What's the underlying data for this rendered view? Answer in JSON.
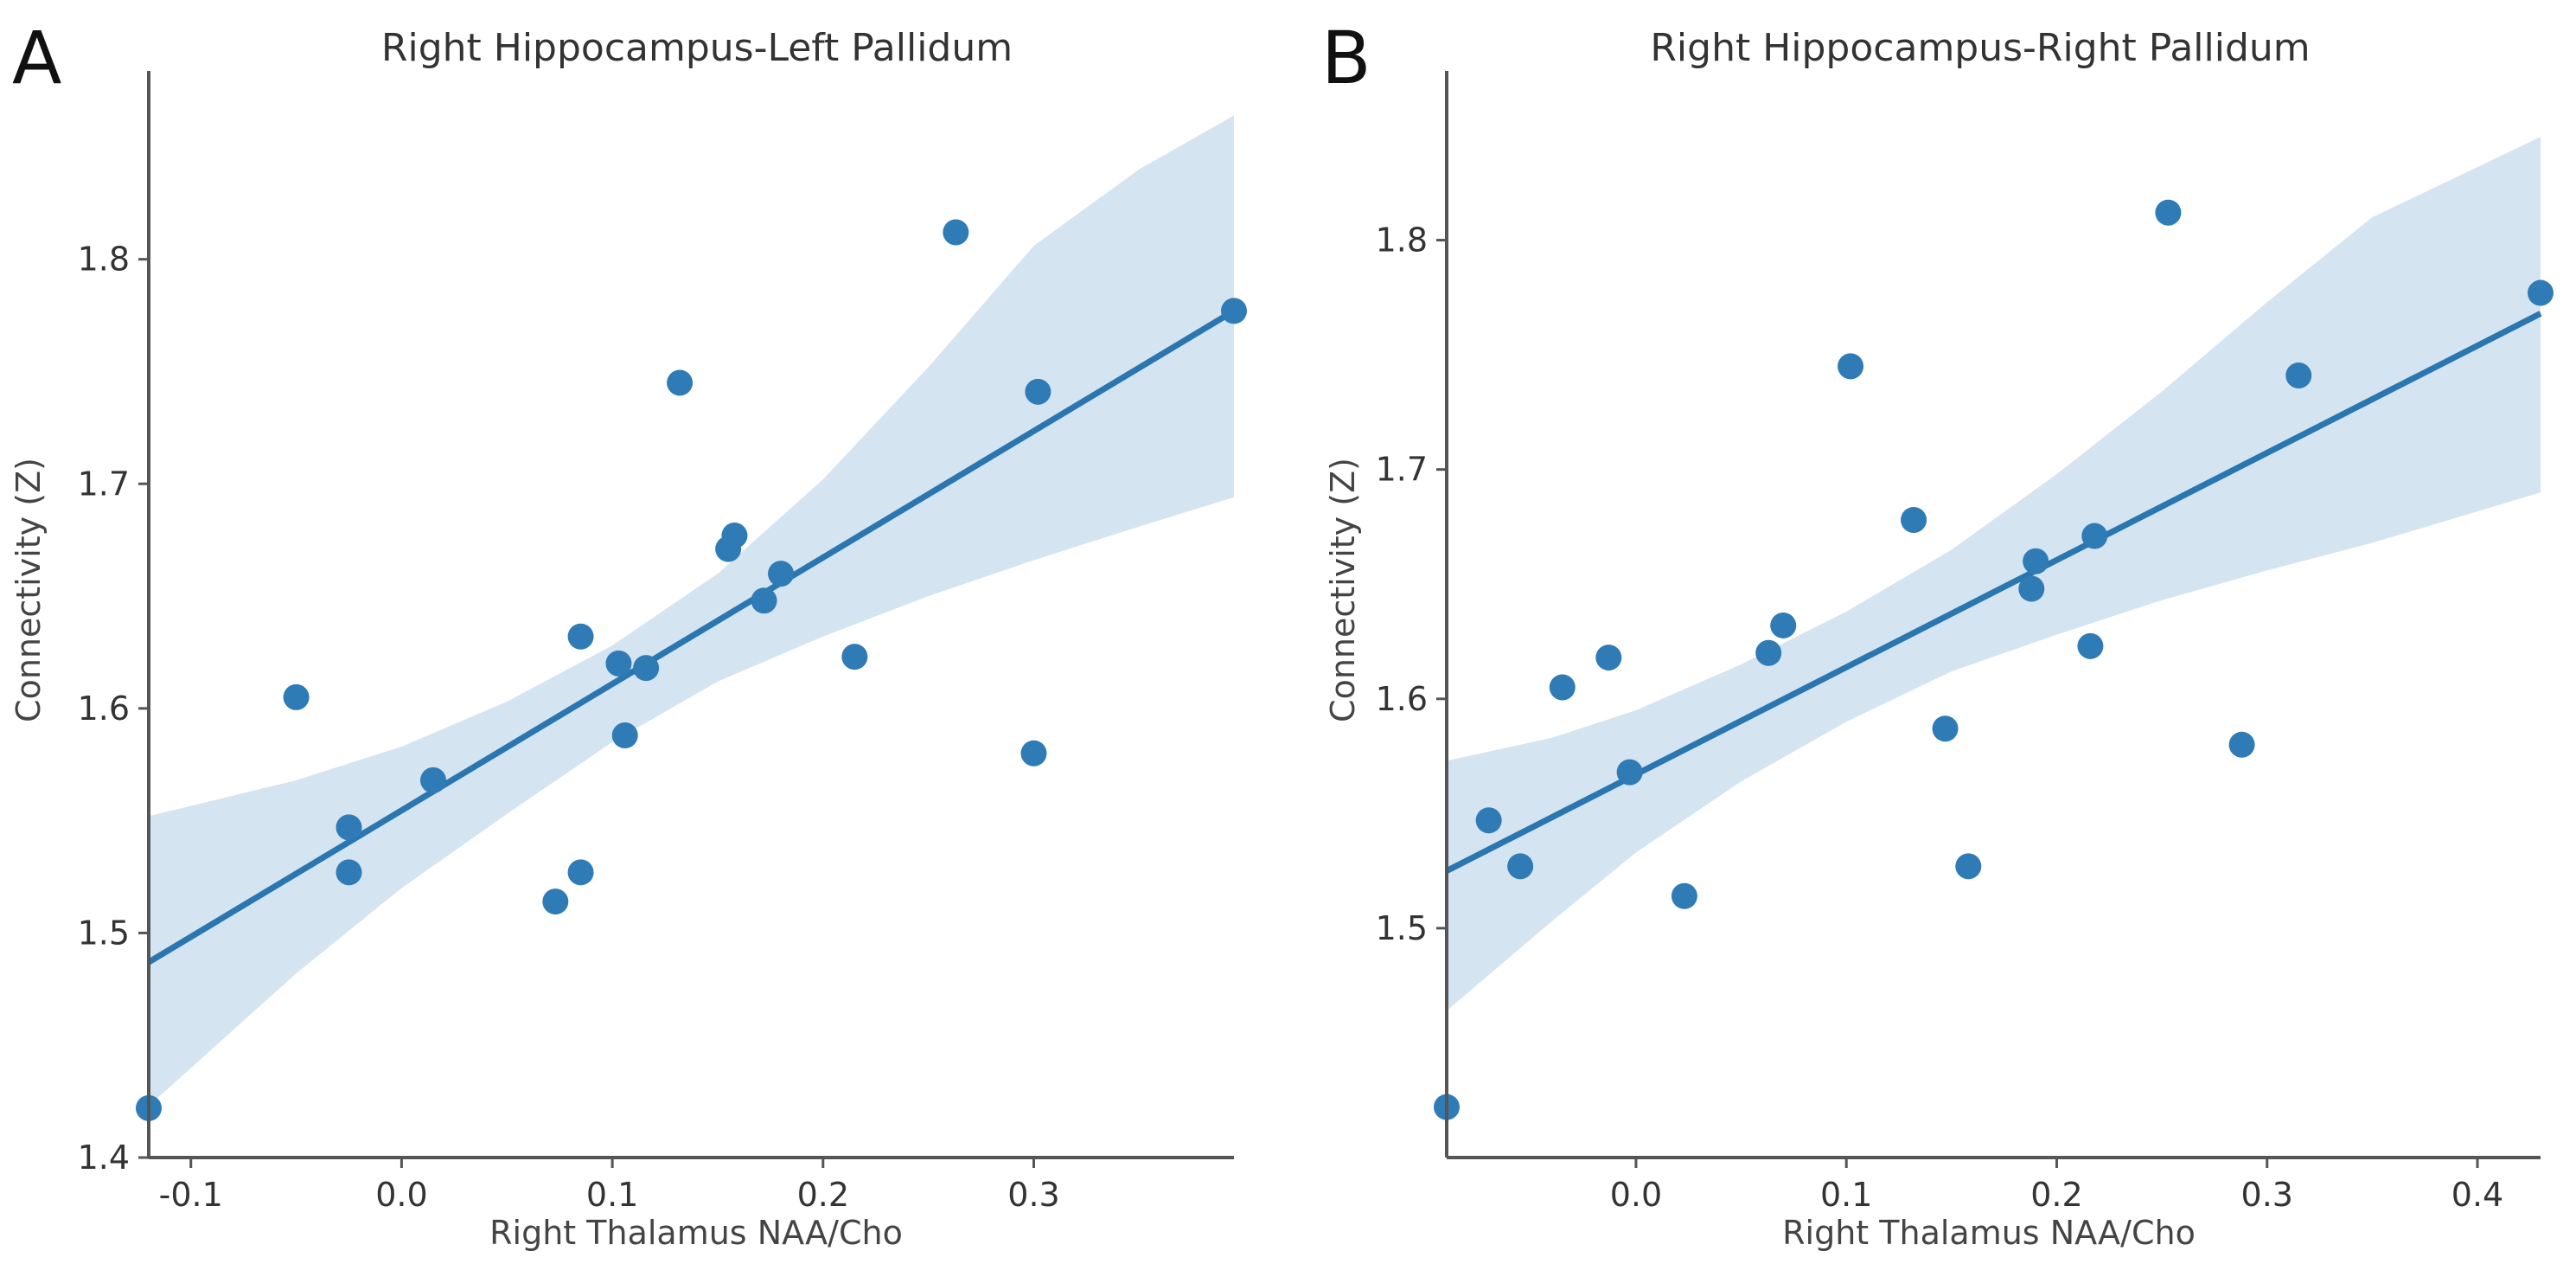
{
  "chart_data": [
    {
      "type": "scatter",
      "panel_label": "A",
      "title": "Right Hippocampus-Left Pallidum",
      "xlabel": "Right Thalamus NAA/Cho",
      "ylabel": "Connectivity (Z)",
      "xlim": [
        -0.12,
        0.395
      ],
      "ylim": [
        1.4,
        1.88
      ],
      "xticks": [
        -0.1,
        0.0,
        0.1,
        0.2,
        0.3
      ],
      "xtick_labels": [
        "-0.1",
        "0.0",
        "0.1",
        "0.2",
        "0.3"
      ],
      "yticks": [
        1.4,
        1.5,
        1.6,
        1.7,
        1.8
      ],
      "ytick_labels": [
        "1.4",
        "1.5",
        "1.6",
        "1.7",
        "1.8"
      ],
      "points": [
        {
          "x": -0.12,
          "y": 1.422
        },
        {
          "x": -0.05,
          "y": 1.605
        },
        {
          "x": -0.025,
          "y": 1.547
        },
        {
          "x": -0.025,
          "y": 1.527
        },
        {
          "x": 0.015,
          "y": 1.568
        },
        {
          "x": 0.073,
          "y": 1.514
        },
        {
          "x": 0.085,
          "y": 1.632
        },
        {
          "x": 0.085,
          "y": 1.527
        },
        {
          "x": 0.103,
          "y": 1.62
        },
        {
          "x": 0.106,
          "y": 1.588
        },
        {
          "x": 0.116,
          "y": 1.618
        },
        {
          "x": 0.132,
          "y": 1.745
        },
        {
          "x": 0.155,
          "y": 1.671
        },
        {
          "x": 0.158,
          "y": 1.677
        },
        {
          "x": 0.172,
          "y": 1.648
        },
        {
          "x": 0.18,
          "y": 1.66
        },
        {
          "x": 0.215,
          "y": 1.623
        },
        {
          "x": 0.263,
          "y": 1.812
        },
        {
          "x": 0.3,
          "y": 1.58
        },
        {
          "x": 0.302,
          "y": 1.741
        },
        {
          "x": 0.395,
          "y": 1.777
        }
      ],
      "regression": {
        "x": [
          -0.12,
          0.395
        ],
        "y": [
          1.487,
          1.777
        ]
      },
      "ci_band": [
        {
          "x": -0.12,
          "lo": 1.423,
          "hi": 1.552
        },
        {
          "x": -0.05,
          "lo": 1.482,
          "hi": 1.568
        },
        {
          "x": 0.0,
          "lo": 1.52,
          "hi": 1.583
        },
        {
          "x": 0.05,
          "lo": 1.553,
          "hi": 1.603
        },
        {
          "x": 0.1,
          "lo": 1.585,
          "hi": 1.628
        },
        {
          "x": 0.15,
          "lo": 1.612,
          "hi": 1.66
        },
        {
          "x": 0.2,
          "lo": 1.632,
          "hi": 1.702
        },
        {
          "x": 0.25,
          "lo": 1.65,
          "hi": 1.752
        },
        {
          "x": 0.3,
          "lo": 1.666,
          "hi": 1.806
        },
        {
          "x": 0.35,
          "lo": 1.681,
          "hi": 1.84
        },
        {
          "x": 0.395,
          "lo": 1.694,
          "hi": 1.864
        }
      ],
      "colors": {
        "point": "#2f7bb6",
        "line": "#2a76b0",
        "band": "#d5e4f1"
      }
    },
    {
      "type": "scatter",
      "panel_label": "B",
      "title": "Right Hippocampus-Right Pallidum",
      "xlabel": "Right Thalamus NAA/Cho",
      "ylabel": "Connectivity (Z)",
      "xlim": [
        -0.09,
        0.43
      ],
      "ylim": [
        1.4,
        1.87
      ],
      "xticks": [
        0.0,
        0.1,
        0.2,
        0.3,
        0.4
      ],
      "xtick_labels": [
        "0.0",
        "0.1",
        "0.2",
        "0.3",
        "0.4"
      ],
      "yticks": [
        1.5,
        1.6,
        1.7,
        1.8
      ],
      "ytick_labels": [
        "1.5",
        "1.6",
        "1.7",
        "1.8"
      ],
      "points": [
        {
          "x": -0.09,
          "y": 1.422
        },
        {
          "x": -0.07,
          "y": 1.547
        },
        {
          "x": -0.055,
          "y": 1.527
        },
        {
          "x": -0.035,
          "y": 1.605
        },
        {
          "x": -0.013,
          "y": 1.618
        },
        {
          "x": -0.003,
          "y": 1.568
        },
        {
          "x": 0.023,
          "y": 1.514
        },
        {
          "x": 0.063,
          "y": 1.62
        },
        {
          "x": 0.07,
          "y": 1.632
        },
        {
          "x": 0.102,
          "y": 1.745
        },
        {
          "x": 0.132,
          "y": 1.678
        },
        {
          "x": 0.147,
          "y": 1.587
        },
        {
          "x": 0.158,
          "y": 1.527
        },
        {
          "x": 0.188,
          "y": 1.648
        },
        {
          "x": 0.19,
          "y": 1.66
        },
        {
          "x": 0.216,
          "y": 1.623
        },
        {
          "x": 0.218,
          "y": 1.671
        },
        {
          "x": 0.253,
          "y": 1.812
        },
        {
          "x": 0.288,
          "y": 1.58
        },
        {
          "x": 0.315,
          "y": 1.741
        },
        {
          "x": 0.43,
          "y": 1.777
        }
      ],
      "regression": {
        "x": [
          -0.09,
          0.43
        ],
        "y": [
          1.525,
          1.768
        ]
      },
      "ci_band": [
        {
          "x": -0.09,
          "lo": 1.464,
          "hi": 1.573
        },
        {
          "x": -0.04,
          "lo": 1.503,
          "hi": 1.583
        },
        {
          "x": 0.0,
          "lo": 1.533,
          "hi": 1.595
        },
        {
          "x": 0.05,
          "lo": 1.564,
          "hi": 1.615
        },
        {
          "x": 0.1,
          "lo": 1.59,
          "hi": 1.638
        },
        {
          "x": 0.15,
          "lo": 1.612,
          "hi": 1.665
        },
        {
          "x": 0.2,
          "lo": 1.628,
          "hi": 1.698
        },
        {
          "x": 0.25,
          "lo": 1.643,
          "hi": 1.734
        },
        {
          "x": 0.3,
          "lo": 1.656,
          "hi": 1.773
        },
        {
          "x": 0.35,
          "lo": 1.668,
          "hi": 1.81
        },
        {
          "x": 0.43,
          "lo": 1.69,
          "hi": 1.845
        }
      ],
      "colors": {
        "point": "#2f7bb6",
        "line": "#2a76b0",
        "band": "#d5e4f1"
      }
    }
  ]
}
